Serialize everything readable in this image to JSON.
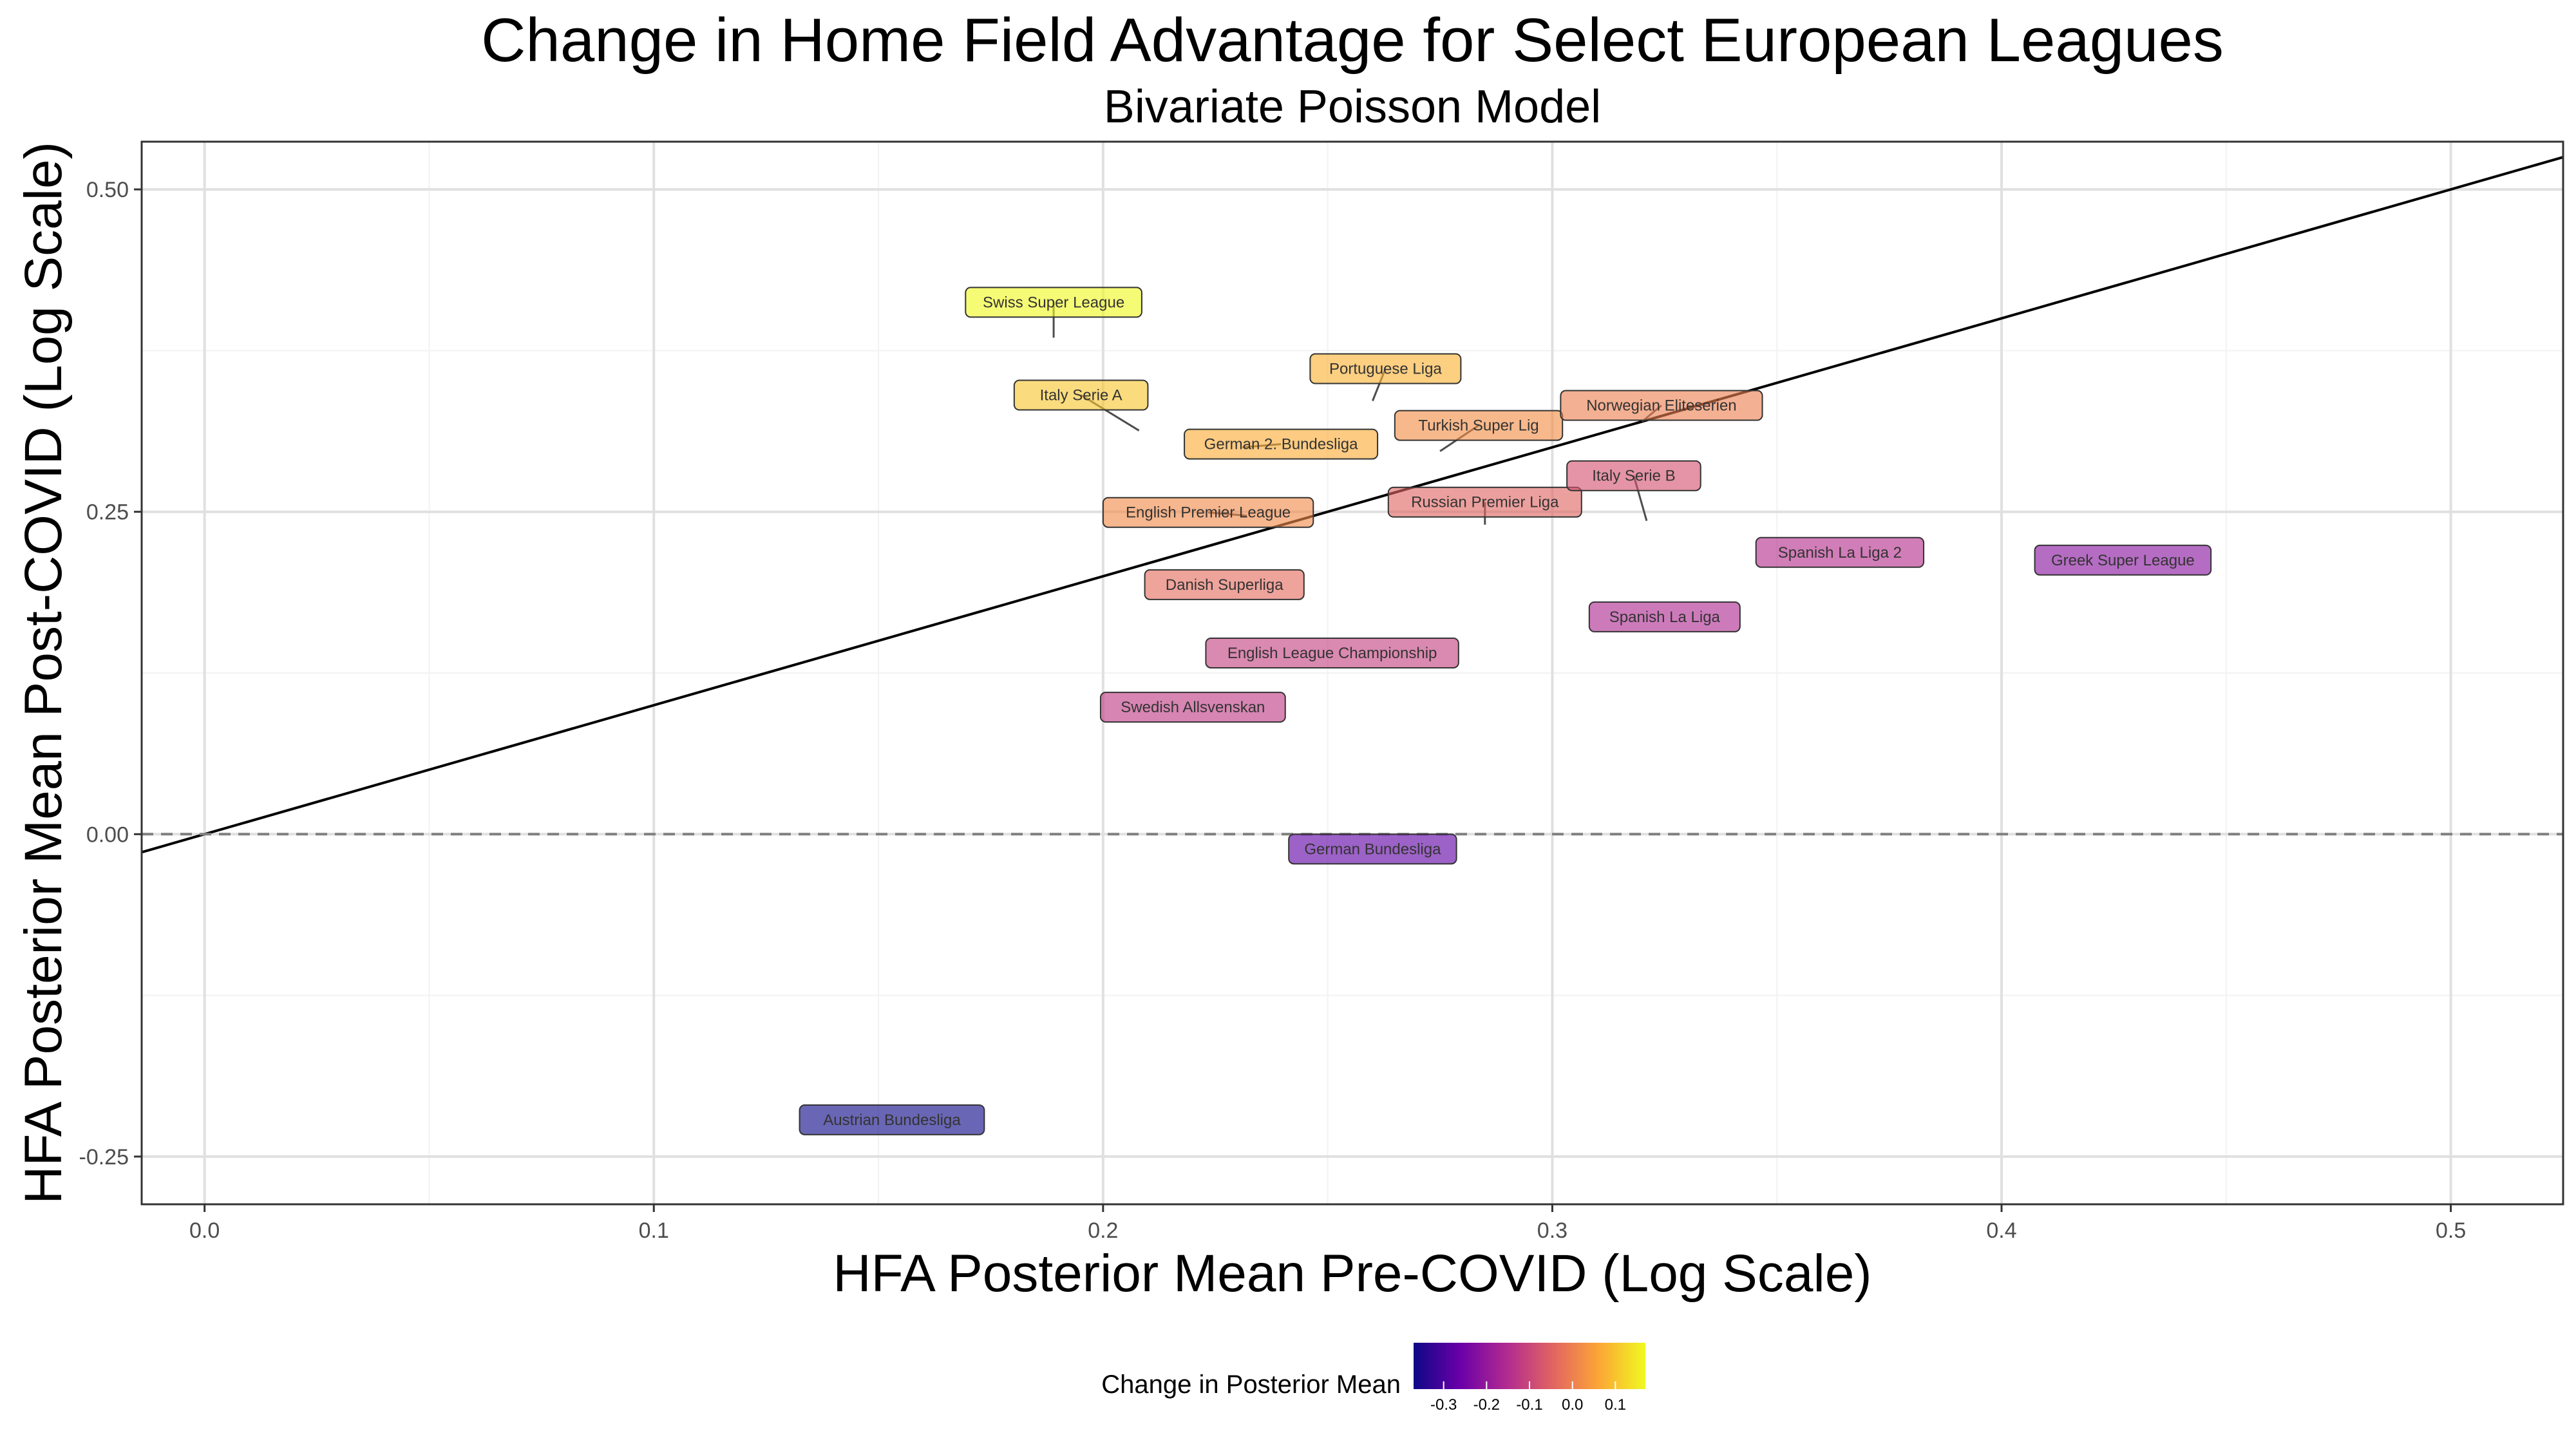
{
  "chart_data": {
    "type": "scatter",
    "title": "Change in Home Field Advantage for Select European Leagues",
    "subtitle": "Bivariate Poisson Model",
    "xlabel": "HFA Posterior Mean Pre-COVID (Log Scale)",
    "ylabel": "HFA Posterior Mean Post-COVID (Log Scale)",
    "xlim": [
      -0.014,
      0.525
    ],
    "ylim": [
      -0.287,
      0.537
    ],
    "x_ticks": [
      "0.0",
      "0.1",
      "0.2",
      "0.3",
      "0.4",
      "0.5"
    ],
    "y_ticks": [
      "-0.25",
      "0.00",
      "0.25",
      "0.50"
    ],
    "grid": true,
    "reference_lines": [
      {
        "kind": "identity",
        "style": "solid",
        "color": "#000000"
      },
      {
        "kind": "horizontal",
        "y": 0,
        "style": "dashed",
        "color": "#808080"
      }
    ],
    "color_scale": {
      "title": "Change in Posterior Mean",
      "palette": "plasma",
      "range": [
        -0.37,
        0.17
      ],
      "ticks": [
        "-0.3",
        "-0.2",
        "-0.1",
        "0.0",
        "0.1"
      ],
      "colors": [
        "#0d0887",
        "#6a00a8",
        "#b12a90",
        "#e16462",
        "#fca636",
        "#f0f921"
      ]
    },
    "points": [
      {
        "name": "Swiss Super League",
        "x": 0.189,
        "y": 0.385,
        "change": 0.196
      },
      {
        "name": "Italy Serie A",
        "x": 0.208,
        "y": 0.313,
        "change": 0.105
      },
      {
        "name": "Portuguese Liga",
        "x": 0.26,
        "y": 0.336,
        "change": 0.076
      },
      {
        "name": "German 2. Bundesliga",
        "x": 0.231,
        "y": 0.3,
        "change": 0.069
      },
      {
        "name": "Turkish Super Lig",
        "x": 0.275,
        "y": 0.297,
        "change": 0.022
      },
      {
        "name": "Norwegian Eliteserien",
        "x": 0.32,
        "y": 0.32,
        "change": 0.0
      },
      {
        "name": "English Premier League",
        "x": 0.232,
        "y": 0.247,
        "change": 0.015
      },
      {
        "name": "Russian Premier Liga",
        "x": 0.285,
        "y": 0.24,
        "change": -0.045
      },
      {
        "name": "Italy Serie B",
        "x": 0.321,
        "y": 0.243,
        "change": -0.078
      },
      {
        "name": "Danish Superliga",
        "x": 0.227,
        "y": 0.191,
        "change": -0.036
      },
      {
        "name": "Spanish La Liga 2",
        "x": 0.364,
        "y": 0.216,
        "change": -0.148
      },
      {
        "name": "Greek Super League",
        "x": 0.427,
        "y": 0.21,
        "change": -0.217
      },
      {
        "name": "Spanish La Liga",
        "x": 0.325,
        "y": 0.166,
        "change": -0.159
      },
      {
        "name": "English League Championship",
        "x": 0.251,
        "y": 0.138,
        "change": -0.113
      },
      {
        "name": "Swedish Allsvenskan",
        "x": 0.22,
        "y": 0.096,
        "change": -0.124
      },
      {
        "name": "German Bundesliga",
        "x": 0.26,
        "y": -0.014,
        "change": -0.274
      },
      {
        "name": "Austrian Bundesliga",
        "x": 0.153,
        "y": -0.224,
        "change": -0.377
      }
    ]
  }
}
